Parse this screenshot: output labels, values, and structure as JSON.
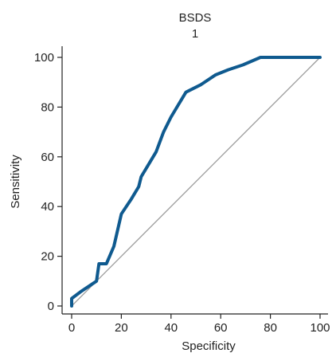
{
  "chart_data": {
    "type": "line",
    "title": "BSDS",
    "subtitle": "1",
    "xlabel": "Specificity",
    "ylabel": "Sensitivity",
    "xlim": [
      0,
      100
    ],
    "ylim": [
      0,
      100
    ],
    "x_ticks": [
      "0",
      "20",
      "40",
      "60",
      "80",
      "100"
    ],
    "y_ticks": [
      "0",
      "20",
      "40",
      "60",
      "80",
      "100"
    ],
    "grid": false,
    "colors": {
      "roc": "#0f5a8f",
      "reference": "#999999",
      "axis": "#222222"
    },
    "series": [
      {
        "x": [
          0,
          0,
          0,
          4,
          7,
          10,
          11,
          14,
          17,
          20,
          24,
          27,
          28,
          31,
          34,
          37,
          40,
          43,
          46,
          52,
          58,
          63,
          69,
          76,
          100
        ],
        "y": [
          0,
          2,
          3,
          6,
          8,
          10,
          17,
          17,
          24,
          37,
          43,
          48,
          52,
          57,
          62,
          70,
          76,
          81,
          86,
          89,
          93,
          95,
          97,
          100,
          100
        ]
      },
      {
        "x": [
          0,
          100
        ],
        "y": [
          0,
          100
        ]
      }
    ]
  }
}
